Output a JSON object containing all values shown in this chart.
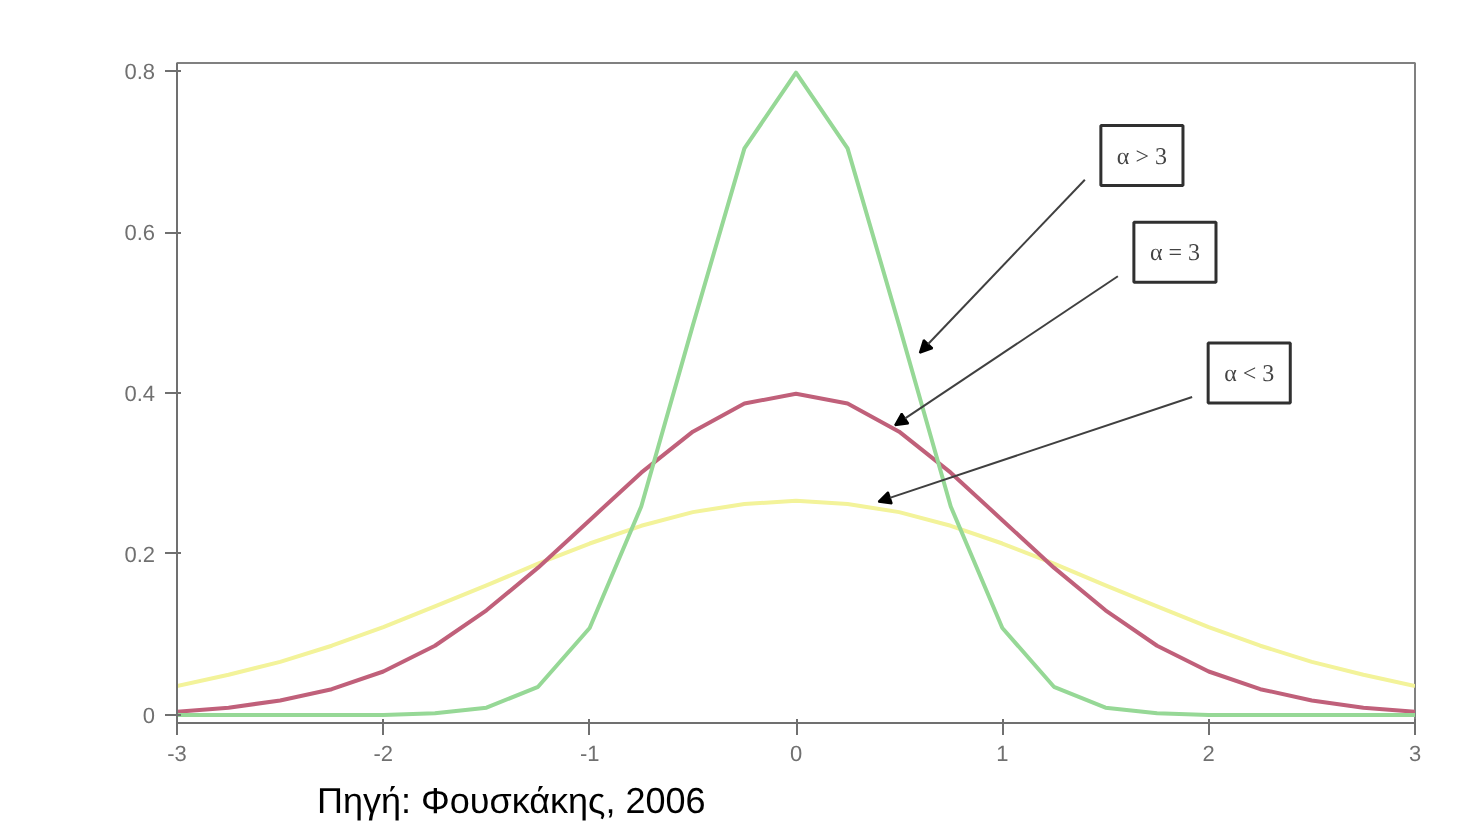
{
  "chart_data": {
    "type": "line",
    "x": [
      -3,
      -2.75,
      -2.5,
      -2.25,
      -2,
      -1.75,
      -1.5,
      -1.25,
      -1,
      -0.75,
      -0.5,
      -0.25,
      0,
      0.25,
      0.5,
      0.75,
      1,
      1.25,
      1.5,
      1.75,
      2,
      2.25,
      2.5,
      2.75,
      3
    ],
    "series": [
      {
        "color": "#f3f39a",
        "values": [
          0.036,
          0.05,
          0.066,
          0.086,
          0.109,
          0.135,
          0.161,
          0.188,
          0.213,
          0.235,
          0.252,
          0.262,
          0.266,
          0.262,
          0.252,
          0.235,
          0.213,
          0.188,
          0.161,
          0.135,
          0.109,
          0.086,
          0.066,
          0.05,
          0.036
        ]
      },
      {
        "color": "#c0607a",
        "values": [
          0.004,
          0.009,
          0.018,
          0.032,
          0.054,
          0.086,
          0.13,
          0.183,
          0.242,
          0.301,
          0.352,
          0.387,
          0.399,
          0.387,
          0.352,
          0.301,
          0.242,
          0.183,
          0.13,
          0.086,
          0.054,
          0.032,
          0.018,
          0.009,
          0.004
        ]
      },
      {
        "color": "#96d896",
        "values": [
          0,
          0,
          0,
          0,
          0,
          0.002,
          0.009,
          0.035,
          0.108,
          0.259,
          0.484,
          0.704,
          0.798,
          0.704,
          0.484,
          0.259,
          0.108,
          0.035,
          0.009,
          0.002,
          0,
          0,
          0,
          0,
          0
        ]
      }
    ],
    "xlim": [
      -3,
      3
    ],
    "ylim": [
      -0.01,
      0.81
    ],
    "xticks": [
      -3,
      -2,
      -1,
      0,
      1,
      2,
      3
    ],
    "yticks": [
      {
        "value": 0,
        "label": "0"
      },
      {
        "value": 0.2,
        "label": "0.2"
      },
      {
        "value": 0.4,
        "label": "0.4"
      },
      {
        "value": 0.6,
        "label": "0.6"
      },
      {
        "value": 0.8,
        "label": "0.8"
      }
    ],
    "grid": false,
    "marker": "none",
    "line_style": "solid",
    "annotations": [
      "α > 3",
      "α = 3",
      "α < 3",
      "Πηγή: Φουσκάκης, 2006"
    ]
  }
}
